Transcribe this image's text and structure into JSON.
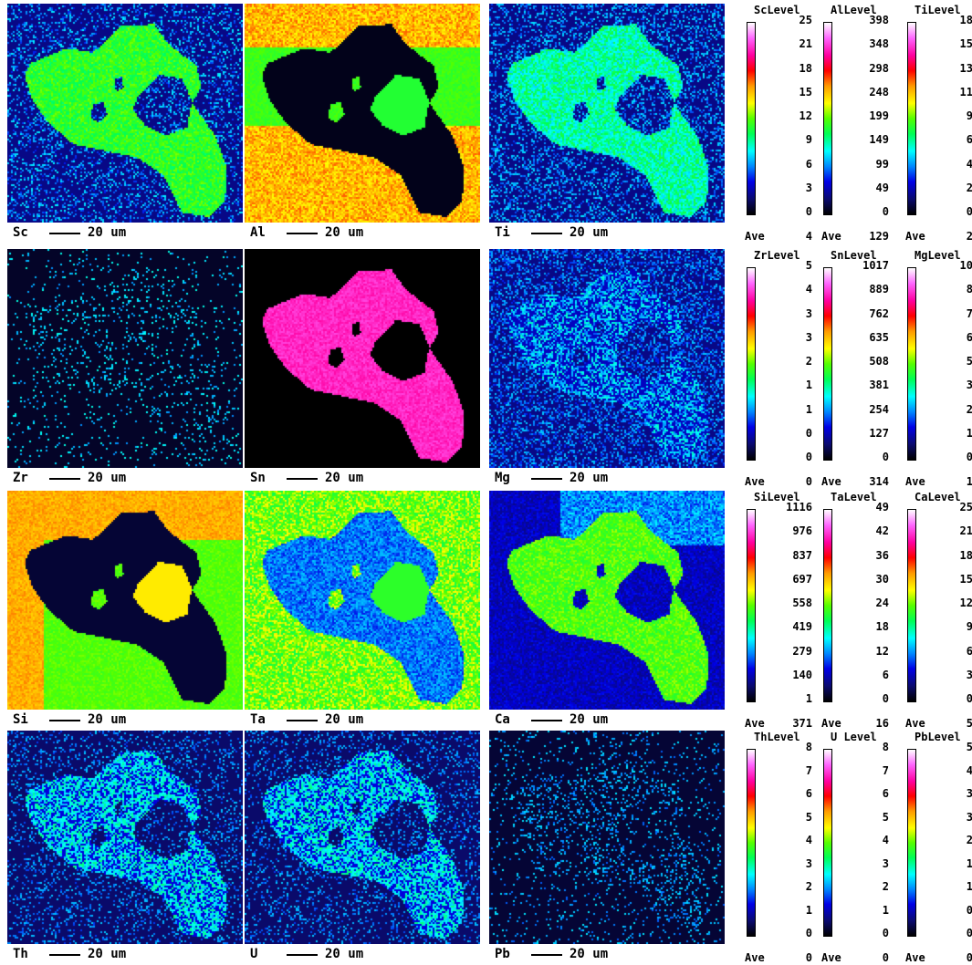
{
  "scale_label": "20 um",
  "colormap": [
    "#000000",
    "#0a0a6e",
    "#0000e6",
    "#0088ff",
    "#00ffff",
    "#00ff55",
    "#55ff00",
    "#ffff00",
    "#ff9900",
    "#ff0000",
    "#ff00a0",
    "#ff66ff",
    "#ffffff"
  ],
  "maps": [
    {
      "element": "Sc",
      "title": "ScLevel",
      "ticks": [
        "25",
        "21",
        "18",
        "15",
        "12",
        "9",
        "6",
        "3",
        "0"
      ],
      "ave_label": "Ave",
      "ave": "4"
    },
    {
      "element": "Al",
      "title": "AlLevel",
      "ticks": [
        "398",
        "348",
        "298",
        "248",
        "199",
        "149",
        "99",
        "49",
        "0"
      ],
      "ave_label": "Ave",
      "ave": "129"
    },
    {
      "element": "Ti",
      "title": "TiLevel",
      "ticks": [
        "18",
        "15",
        "13",
        "11",
        "9",
        "6",
        "4",
        "2",
        "0"
      ],
      "ave_label": "Ave",
      "ave": "2"
    },
    {
      "element": "Zr",
      "title": "ZrLevel",
      "ticks": [
        "5",
        "4",
        "3",
        "3",
        "2",
        "1",
        "1",
        "0",
        "0"
      ],
      "ave_label": "Ave",
      "ave": "0"
    },
    {
      "element": "Sn",
      "title": "SnLevel",
      "ticks": [
        "1017",
        "889",
        "762",
        "635",
        "508",
        "381",
        "254",
        "127",
        "0"
      ],
      "ave_label": "Ave",
      "ave": "314"
    },
    {
      "element": "Mg",
      "title": "MgLevel",
      "ticks": [
        "10",
        "8",
        "7",
        "6",
        "5",
        "3",
        "2",
        "1",
        "0"
      ],
      "ave_label": "Ave",
      "ave": "1"
    },
    {
      "element": "Si",
      "title": "SiLevel",
      "ticks": [
        "1116",
        "976",
        "837",
        "697",
        "558",
        "419",
        "279",
        "140",
        "1"
      ],
      "ave_label": "Ave",
      "ave": "371"
    },
    {
      "element": "Ta",
      "title": "TaLevel",
      "ticks": [
        "49",
        "42",
        "36",
        "30",
        "24",
        "18",
        "12",
        "6",
        "0"
      ],
      "ave_label": "Ave",
      "ave": "16"
    },
    {
      "element": "Ca",
      "title": "CaLevel",
      "ticks": [
        "25",
        "21",
        "18",
        "15",
        "12",
        "9",
        "6",
        "3",
        "0"
      ],
      "ave_label": "Ave",
      "ave": "5"
    },
    {
      "element": "Th",
      "title": "ThLevel",
      "ticks": [
        "8",
        "7",
        "6",
        "5",
        "4",
        "3",
        "2",
        "1",
        "0"
      ],
      "ave_label": "Ave",
      "ave": "0"
    },
    {
      "element": "U",
      "title": "U Level",
      "ticks": [
        "8",
        "7",
        "6",
        "5",
        "4",
        "3",
        "2",
        "1",
        "0"
      ],
      "ave_label": "Ave",
      "ave": "0"
    },
    {
      "element": "Pb",
      "title": "PbLevel",
      "ticks": [
        "5",
        "4",
        "3",
        "3",
        "2",
        "1",
        "1",
        "0",
        "0"
      ],
      "ave_label": "Ave",
      "ave": "0"
    }
  ]
}
